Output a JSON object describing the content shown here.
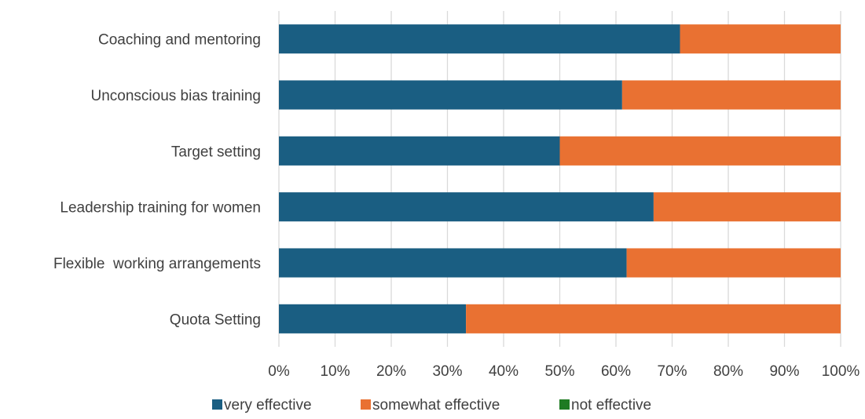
{
  "chart_data": {
    "type": "bar",
    "orientation": "horizontal",
    "stacked": "100%",
    "categories": [
      "Coaching and mentoring",
      "Unconscious bias training",
      "Target setting",
      "Leadership training for women",
      "Flexible  working arrangements",
      "Quota Setting"
    ],
    "series": [
      {
        "name": "very effective",
        "color": "#1a5e82",
        "values": [
          71.4,
          61.1,
          50.0,
          66.7,
          61.9,
          33.3
        ]
      },
      {
        "name": "somewhat effective",
        "color": "#e97132",
        "values": [
          28.6,
          38.9,
          50.0,
          33.3,
          38.1,
          66.7
        ]
      },
      {
        "name": "not effective",
        "color": "#1e7b22",
        "values": [
          0,
          0,
          0,
          0,
          0,
          0
        ]
      }
    ],
    "x_ticks": [
      "0%",
      "10%",
      "20%",
      "30%",
      "40%",
      "50%",
      "60%",
      "70%",
      "80%",
      "90%",
      "100%"
    ],
    "xlim": [
      0,
      100
    ],
    "grid": true,
    "legend_position": "bottom",
    "title": "",
    "xlabel": "",
    "ylabel": ""
  }
}
